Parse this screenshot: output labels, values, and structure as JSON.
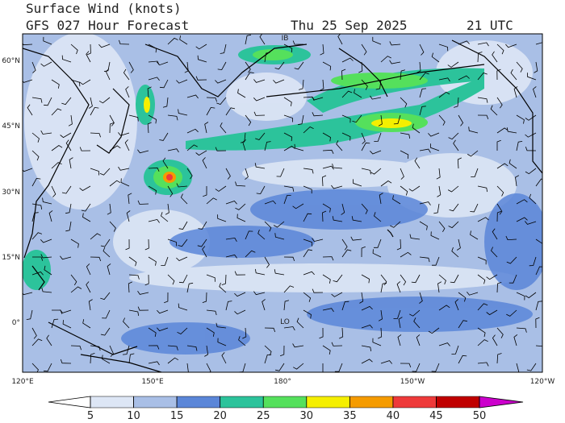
{
  "header": {
    "title": "Surface Wind (knots)",
    "subtitle": "GFS 027 Hour Forecast",
    "date": "Thu 25 Sep 2025",
    "time": "21 UTC"
  },
  "map": {
    "lat_labels": [
      "60°N",
      "45°N",
      "30°N",
      "15°N",
      "0°"
    ],
    "lon_labels": [
      "120°E",
      "150°E",
      "180°",
      "150°W",
      "120°W"
    ],
    "place_labels": [
      "IB",
      "LO"
    ]
  },
  "colorbar": {
    "ticks": [
      5,
      10,
      15,
      20,
      25,
      30,
      35,
      40,
      45,
      50
    ],
    "under_color": "#ffffff",
    "colors": [
      "#dde6f5",
      "#a9bfe6",
      "#5b86d8",
      "#2cc39b",
      "#55e05c",
      "#f5ef00",
      "#f59b00",
      "#ee3a3a",
      "#c00000"
    ],
    "over_color": "#cc00cc"
  }
}
